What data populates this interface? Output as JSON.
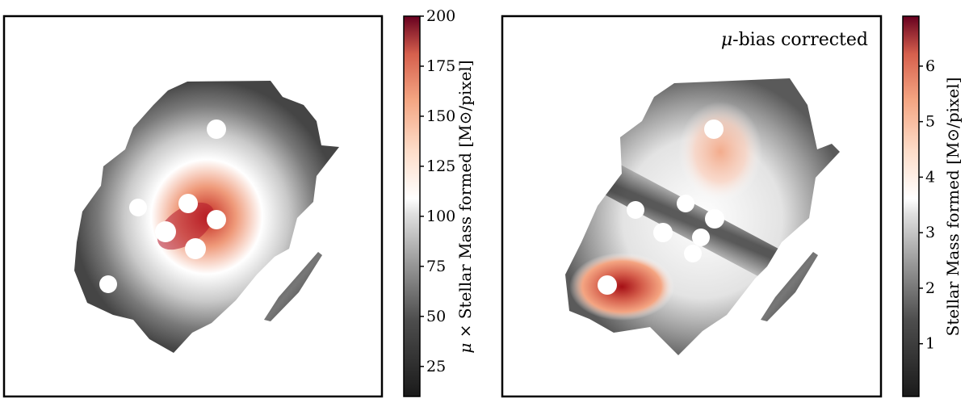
{
  "chart_data": [
    {
      "type": "heatmap",
      "title": "",
      "xlabel": "",
      "ylabel": "",
      "colorbar": {
        "label_prefix": "μ × ",
        "label": "Stellar Mass formed [M⊙/pixel]",
        "range": [
          10,
          200
        ],
        "ticks": [
          25,
          50,
          75,
          100,
          125,
          150,
          175,
          200
        ],
        "tick_labels": [
          "25",
          "50",
          "75",
          "100",
          "125",
          "150",
          "175",
          "200"
        ],
        "colormap": "diverging gray-white-red (RdGy)"
      },
      "annotation": ""
    },
    {
      "type": "heatmap",
      "title": "",
      "xlabel": "",
      "ylabel": "",
      "colorbar": {
        "label_prefix": "",
        "label": "Stellar Mass formed [M⊙/pixel]",
        "range": [
          0.05,
          6.9
        ],
        "ticks": [
          1,
          2,
          3,
          4,
          5,
          6
        ],
        "tick_labels": [
          "1",
          "2",
          "3",
          "4",
          "5",
          "6"
        ],
        "colormap": "diverging gray-white-red (RdGy)"
      },
      "annotation_italic": "μ",
      "annotation": "-bias corrected"
    }
  ],
  "colors": {
    "dark": "#1a1a1a",
    "mid_gray": "#8c8c8c",
    "white": "#ffffff",
    "salmon": "#f0a585",
    "dark_red": "#67001f"
  }
}
